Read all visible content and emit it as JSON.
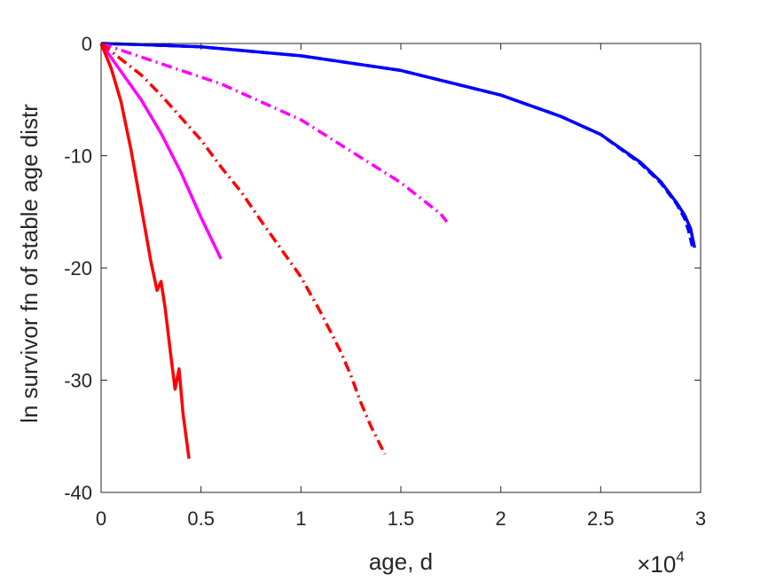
{
  "chart_data": {
    "type": "line",
    "title": "",
    "xlabel": "age, d",
    "ylabel": "ln survivor fn of stable age distr",
    "x_exponent_label": "×10",
    "x_exponent_power": "4",
    "xlim": [
      0,
      3
    ],
    "ylim": [
      -40,
      0
    ],
    "xticks": [
      0,
      0.5,
      1,
      1.5,
      2,
      2.5,
      3
    ],
    "xtick_labels": [
      "0",
      "0.5",
      "1",
      "1.5",
      "2",
      "2.5",
      "3"
    ],
    "yticks": [
      0,
      -10,
      -20,
      -30,
      -40
    ],
    "ytick_labels": [
      "0",
      "-10",
      "-20",
      "-30",
      "-40"
    ],
    "grid": false,
    "series": [
      {
        "color": "#0000ff",
        "style": "dashed",
        "points": [
          [
            0,
            0
          ],
          [
            0.2,
            -0.1
          ],
          [
            0.5,
            -0.3
          ],
          [
            1.0,
            -1.1
          ],
          [
            1.5,
            -2.4
          ],
          [
            2.0,
            -4.6
          ],
          [
            2.3,
            -6.5
          ],
          [
            2.5,
            -8.1
          ],
          [
            2.7,
            -10.7
          ],
          [
            2.8,
            -12.4
          ],
          [
            2.88,
            -14.3
          ],
          [
            2.92,
            -15.6
          ],
          [
            2.94,
            -16.7
          ],
          [
            2.96,
            -18.2
          ]
        ]
      },
      {
        "color": "#0000ff",
        "style": "solid",
        "points": [
          [
            0,
            0
          ],
          [
            0.2,
            -0.1
          ],
          [
            0.5,
            -0.3
          ],
          [
            1.0,
            -1.1
          ],
          [
            1.5,
            -2.4
          ],
          [
            2.0,
            -4.6
          ],
          [
            2.3,
            -6.5
          ],
          [
            2.5,
            -8.1
          ],
          [
            2.7,
            -10.6
          ],
          [
            2.8,
            -12.3
          ],
          [
            2.88,
            -14.2
          ],
          [
            2.92,
            -15.3
          ],
          [
            2.95,
            -16.5
          ],
          [
            2.97,
            -18.2
          ]
        ]
      },
      {
        "color": "#ff00ff",
        "style": "dashdot",
        "points": [
          [
            0,
            0
          ],
          [
            0.3,
            -1.8
          ],
          [
            0.6,
            -3.6
          ],
          [
            1.0,
            -6.8
          ],
          [
            1.5,
            -12.4
          ],
          [
            1.7,
            -15.2
          ],
          [
            1.73,
            -15.9
          ]
        ]
      },
      {
        "color": "#ff00ff",
        "style": "solid",
        "points": [
          [
            0,
            0
          ],
          [
            0.1,
            -2.5
          ],
          [
            0.2,
            -5.0
          ],
          [
            0.3,
            -8.0
          ],
          [
            0.4,
            -11.5
          ],
          [
            0.5,
            -15.5
          ],
          [
            0.6,
            -19.2
          ]
        ]
      },
      {
        "color": "#ff0000",
        "style": "dashdot",
        "points": [
          [
            0,
            0
          ],
          [
            0.1,
            -1.4
          ],
          [
            0.2,
            -2.8
          ],
          [
            0.3,
            -4.6
          ],
          [
            0.4,
            -6.6
          ],
          [
            0.5,
            -8.6
          ],
          [
            0.6,
            -11.0
          ],
          [
            0.7,
            -13.2
          ],
          [
            0.8,
            -15.8
          ],
          [
            0.9,
            -18.3
          ],
          [
            1.0,
            -20.8
          ],
          [
            1.1,
            -24.0
          ],
          [
            1.2,
            -27.5
          ],
          [
            1.25,
            -29.6
          ],
          [
            1.3,
            -32.0
          ],
          [
            1.35,
            -34.1
          ],
          [
            1.42,
            -36.6
          ]
        ]
      },
      {
        "color": "#ff0000",
        "style": "solid",
        "points": [
          [
            0,
            0
          ],
          [
            0.05,
            -2.2
          ],
          [
            0.1,
            -5.2
          ],
          [
            0.15,
            -9.5
          ],
          [
            0.2,
            -14.5
          ],
          [
            0.25,
            -19.5
          ],
          [
            0.28,
            -22.0
          ],
          [
            0.3,
            -21.2
          ],
          [
            0.32,
            -23.5
          ],
          [
            0.35,
            -28.0
          ],
          [
            0.37,
            -30.8
          ],
          [
            0.39,
            -29.0
          ],
          [
            0.41,
            -33.0
          ],
          [
            0.44,
            -37.0
          ]
        ]
      }
    ]
  }
}
